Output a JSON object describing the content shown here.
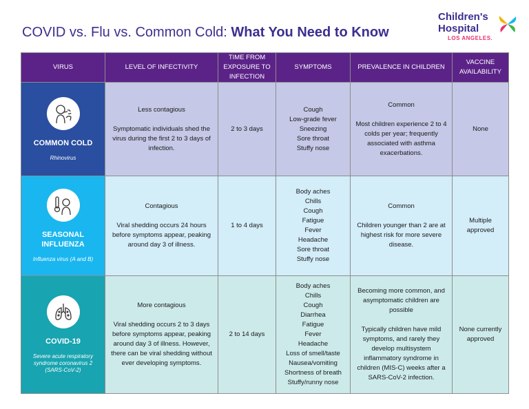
{
  "header": {
    "title_plain": "COVID vs. Flu vs. Common Cold: ",
    "title_bold": "What You Need to Know"
  },
  "logo": {
    "line1": "Children's",
    "line2": "Hospital",
    "line3": "LOS ANGELES."
  },
  "columns": [
    "VIRUS",
    "LEVEL OF INFECTIVITY",
    "TIME FROM EXPOSURE TO INFECTION",
    "SYMPTOMS",
    "PREVALENCE IN CHILDREN",
    "VACCINE AVAILABILITY"
  ],
  "rows": [
    {
      "virus": "COMMON COLD",
      "scientific": "Rhinovirus",
      "icon": "sneeze-icon",
      "infectivity": [
        "Less contagious",
        "Symptomatic individuals shed the virus during the first 2 to 3 days of infection."
      ],
      "time": "2 to 3 days",
      "symptoms": [
        "Cough",
        "Low-grade fever",
        "Sneezing",
        "Sore throat",
        "Stuffy nose"
      ],
      "prevalence": [
        "Common",
        "Most children experience 2 to 4 colds per year; frequently associated with asthma exacerbations."
      ],
      "vaccine": "None"
    },
    {
      "virus": "SEASONAL INFLUENZA",
      "scientific": "Influenza virus (A and B)",
      "icon": "thermometer-icon",
      "infectivity": [
        "Contagious",
        "Viral shedding occurs 24 hours before symptoms appear, peaking around day 3 of illness."
      ],
      "time": "1 to 4 days",
      "symptoms": [
        "Body aches",
        "Chills",
        "Cough",
        "Fatigue",
        "Fever",
        "Headache",
        "Sore throat",
        "Stuffy nose"
      ],
      "prevalence": [
        "Common",
        "Children younger than 2 are at highest risk for more severe disease."
      ],
      "vaccine": "Multiple approved"
    },
    {
      "virus": "COVID-19",
      "scientific": "Severe acute respiratory syndrome coronavirus 2 (SARS-CoV-2)",
      "icon": "lungs-icon",
      "infectivity": [
        "More contagious",
        "Viral shedding occurs 2 to 3 days before symptoms appear, peaking around day 3 of illness. However, there can be viral shedding without ever developing symptoms."
      ],
      "time": "2 to 14 days",
      "symptoms": [
        "Body aches",
        "Chills",
        "Cough",
        "Diarrhea",
        "Fatigue",
        "Fever",
        "Headache",
        "Loss of smell/taste",
        "Nausea/vomiting",
        "Shortness of breath",
        "Stuffy/runny nose"
      ],
      "prevalence": [
        "Becoming more common, and asymptomatic children are possible",
        "Typically children have mild symptoms, and rarely they develop multisystem inflammatory syndrome in children (MIS-C) weeks after a SARS-CoV-2 infection."
      ],
      "vaccine": "None currently approved"
    }
  ],
  "colors": {
    "header_bg": "#5b2388",
    "title": "#3a2f8f",
    "cold_virus": "#2a4ea0",
    "flu_virus": "#1ab6ef",
    "covid_virus": "#18a4b0"
  }
}
